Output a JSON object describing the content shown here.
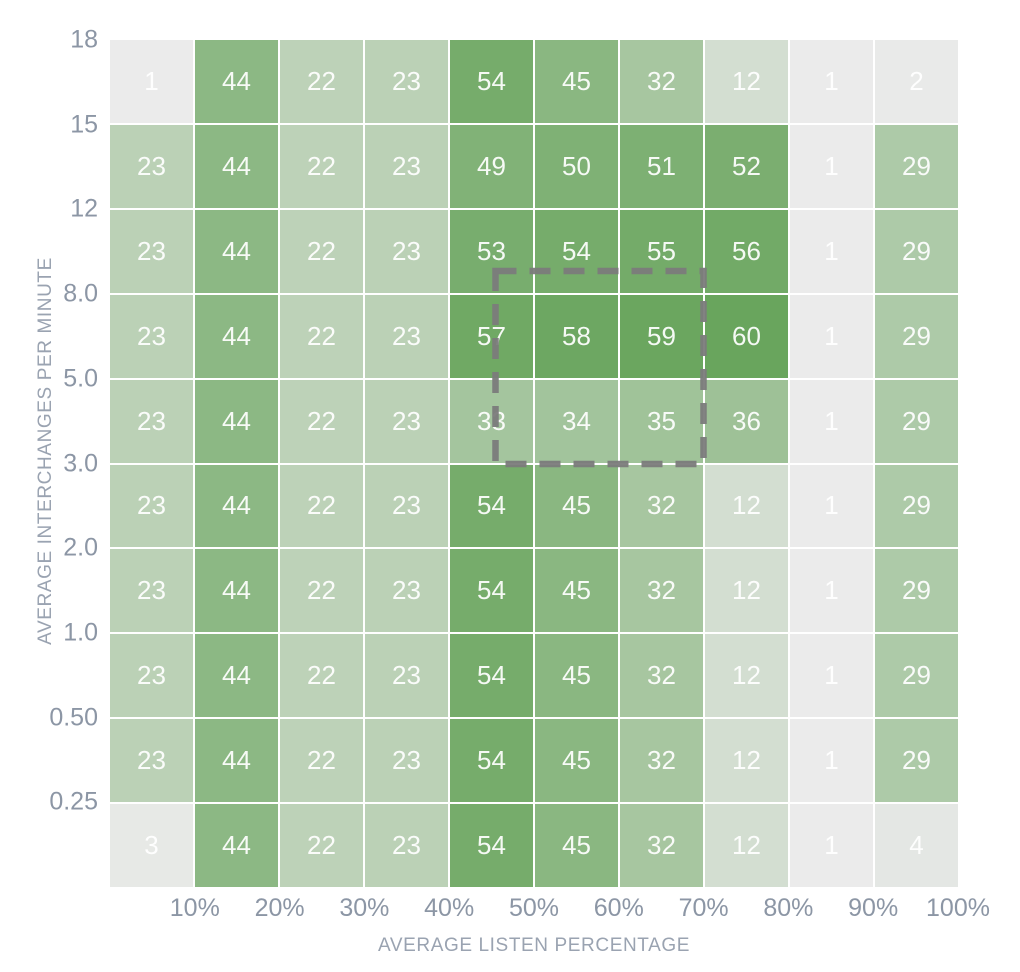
{
  "chart_data": {
    "type": "heatmap",
    "xlabel": "AVERAGE LISTEN PERCENTAGE",
    "ylabel": "AVERAGE INTERCHANGES PER MINUTE",
    "x_tick_labels": [
      "10%",
      "20%",
      "30%",
      "40%",
      "50%",
      "60%",
      "70%",
      "80%",
      "90%",
      "100%"
    ],
    "y_tick_labels": [
      "18",
      "15",
      "12",
      "8.0",
      "5.0",
      "3.0",
      "2.0",
      "1.0",
      "0.50",
      "0.25"
    ],
    "rows": [
      [
        1,
        44,
        22,
        23,
        54,
        45,
        32,
        12,
        1,
        2
      ],
      [
        23,
        44,
        22,
        23,
        49,
        50,
        51,
        52,
        1,
        29
      ],
      [
        23,
        44,
        22,
        23,
        53,
        54,
        55,
        56,
        1,
        29
      ],
      [
        23,
        44,
        22,
        23,
        57,
        58,
        59,
        60,
        1,
        29
      ],
      [
        23,
        44,
        22,
        23,
        33,
        34,
        35,
        36,
        1,
        29
      ],
      [
        23,
        44,
        22,
        23,
        54,
        45,
        32,
        12,
        1,
        29
      ],
      [
        23,
        44,
        22,
        23,
        54,
        45,
        32,
        12,
        1,
        29
      ],
      [
        23,
        44,
        22,
        23,
        54,
        45,
        32,
        12,
        1,
        29
      ],
      [
        23,
        44,
        22,
        23,
        54,
        45,
        32,
        12,
        1,
        29
      ],
      [
        3,
        44,
        22,
        23,
        54,
        45,
        32,
        12,
        1,
        4
      ]
    ],
    "value_domain": [
      1,
      60
    ],
    "layout_hints": {
      "grid": "white 2px gaps between cells",
      "legend": "none",
      "selection_brush": "dashed gray rectangle over x 44%-70%, y 3.0-9 region"
    },
    "colors": {
      "low": "#EBEBEB",
      "high": "#69A55D",
      "axis_text": "#8C96A5",
      "selection": "#7B7B7B",
      "cell_text": "#FFFFFF"
    }
  }
}
